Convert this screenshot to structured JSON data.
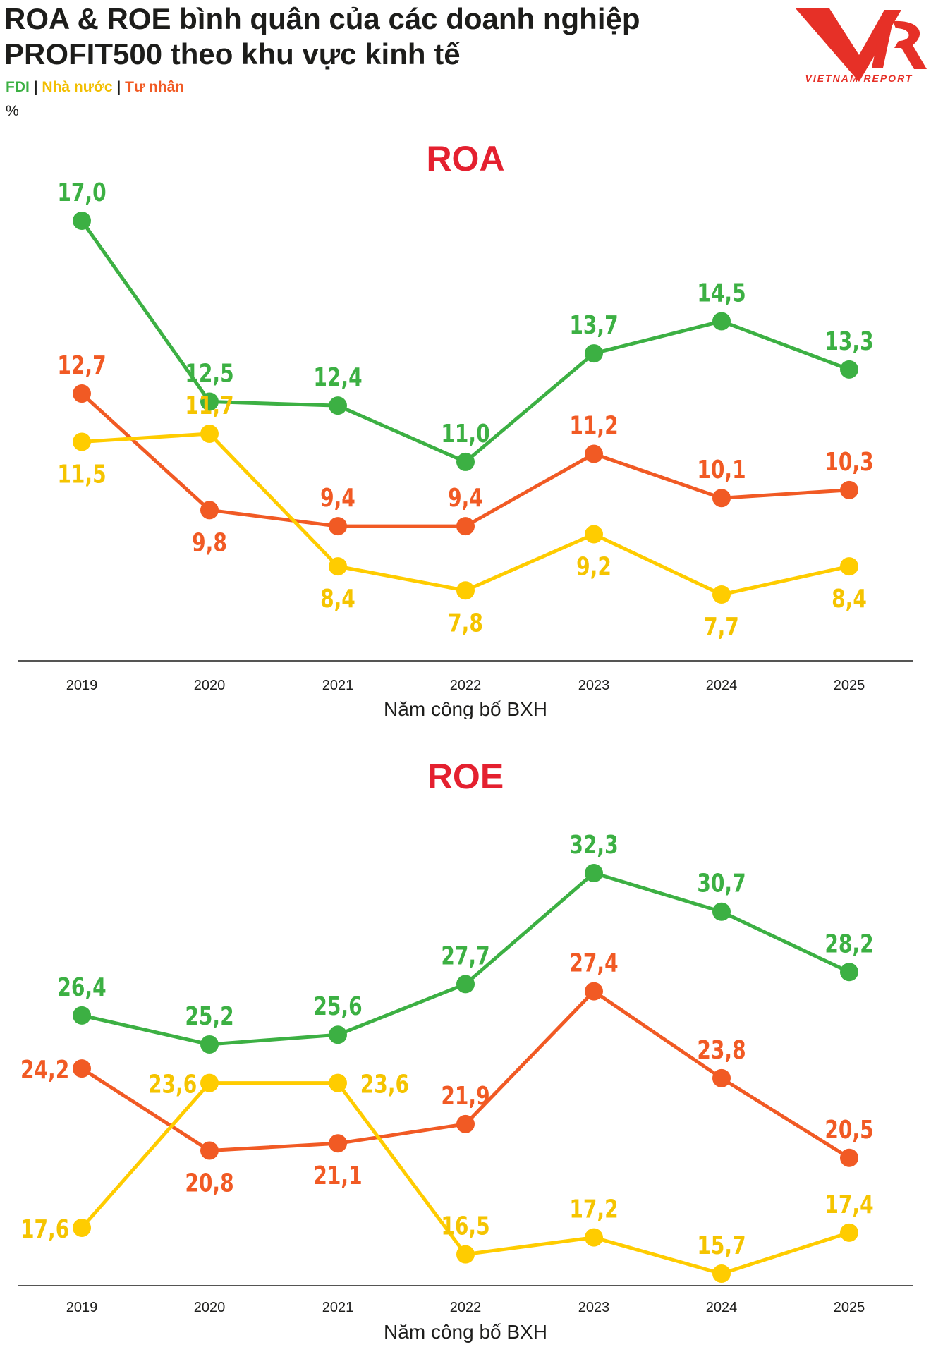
{
  "header": {
    "title": "ROA & ROE bình quân của các doanh nghiệp PROFIT500 theo khu vực kinh tế",
    "legend": [
      {
        "label": "FDI",
        "color": "#3cb043"
      },
      {
        "label": "Nhà nước",
        "color": "#ffcc00"
      },
      {
        "label": "Tư nhân",
        "color": "#f15a24"
      }
    ],
    "unit": "%",
    "logo_text": "VIETNAM REPORT"
  },
  "colors": {
    "fdi": "#3cb043",
    "state": "#ffcc00",
    "private": "#f15a24",
    "title": "#e4202f"
  },
  "chart_data": [
    {
      "type": "line",
      "title": "ROA",
      "xlabel": "Năm công bố BXH",
      "ylabel": "",
      "categories": [
        "2019",
        "2020",
        "2021",
        "2022",
        "2023",
        "2024",
        "2025"
      ],
      "series": [
        {
          "name": "FDI",
          "color": "#3cb043",
          "values": [
            17.0,
            12.5,
            12.4,
            11.0,
            13.7,
            14.5,
            13.3
          ],
          "labels": [
            "17,0",
            "12,5",
            "12,4",
            "11,0",
            "13,7",
            "14,5",
            "13,3"
          ]
        },
        {
          "name": "Tư nhân",
          "color": "#f15a24",
          "values": [
            12.7,
            9.8,
            9.4,
            9.4,
            11.2,
            10.1,
            10.3
          ],
          "labels": [
            "12,7",
            "9,8",
            "9,4",
            "9,4",
            "11,2",
            "10,1",
            "10,3"
          ]
        },
        {
          "name": "Nhà nước",
          "color": "#ffcc00",
          "values": [
            11.5,
            11.7,
            8.4,
            7.8,
            9.2,
            7.7,
            8.4
          ],
          "labels": [
            "11,5",
            "11,7",
            "8,4",
            "7,8",
            "9,2",
            "7,7",
            "8,4"
          ]
        }
      ]
    },
    {
      "type": "line",
      "title": "ROE",
      "xlabel": "Năm công bố BXH",
      "ylabel": "",
      "categories": [
        "2019",
        "2020",
        "2021",
        "2022",
        "2023",
        "2024",
        "2025"
      ],
      "series": [
        {
          "name": "FDI",
          "color": "#3cb043",
          "values": [
            26.4,
            25.2,
            25.6,
            27.7,
            32.3,
            30.7,
            28.2
          ],
          "labels": [
            "26,4",
            "25,2",
            "25,6",
            "27,7",
            "32,3",
            "30,7",
            "28,2"
          ]
        },
        {
          "name": "Tư nhân",
          "color": "#f15a24",
          "values": [
            24.2,
            20.8,
            21.1,
            21.9,
            27.4,
            23.8,
            20.5
          ],
          "labels": [
            "24,2",
            "20,8",
            "21,1",
            "21,9",
            "27,4",
            "23,8",
            "20,5"
          ]
        },
        {
          "name": "Nhà nước",
          "color": "#ffcc00",
          "values": [
            17.6,
            23.6,
            23.6,
            16.5,
            17.2,
            15.7,
            17.4
          ],
          "labels": [
            "17,6",
            "23,6",
            "23,6",
            "16,5",
            "17,2",
            "15,7",
            "17,4"
          ]
        }
      ]
    }
  ]
}
